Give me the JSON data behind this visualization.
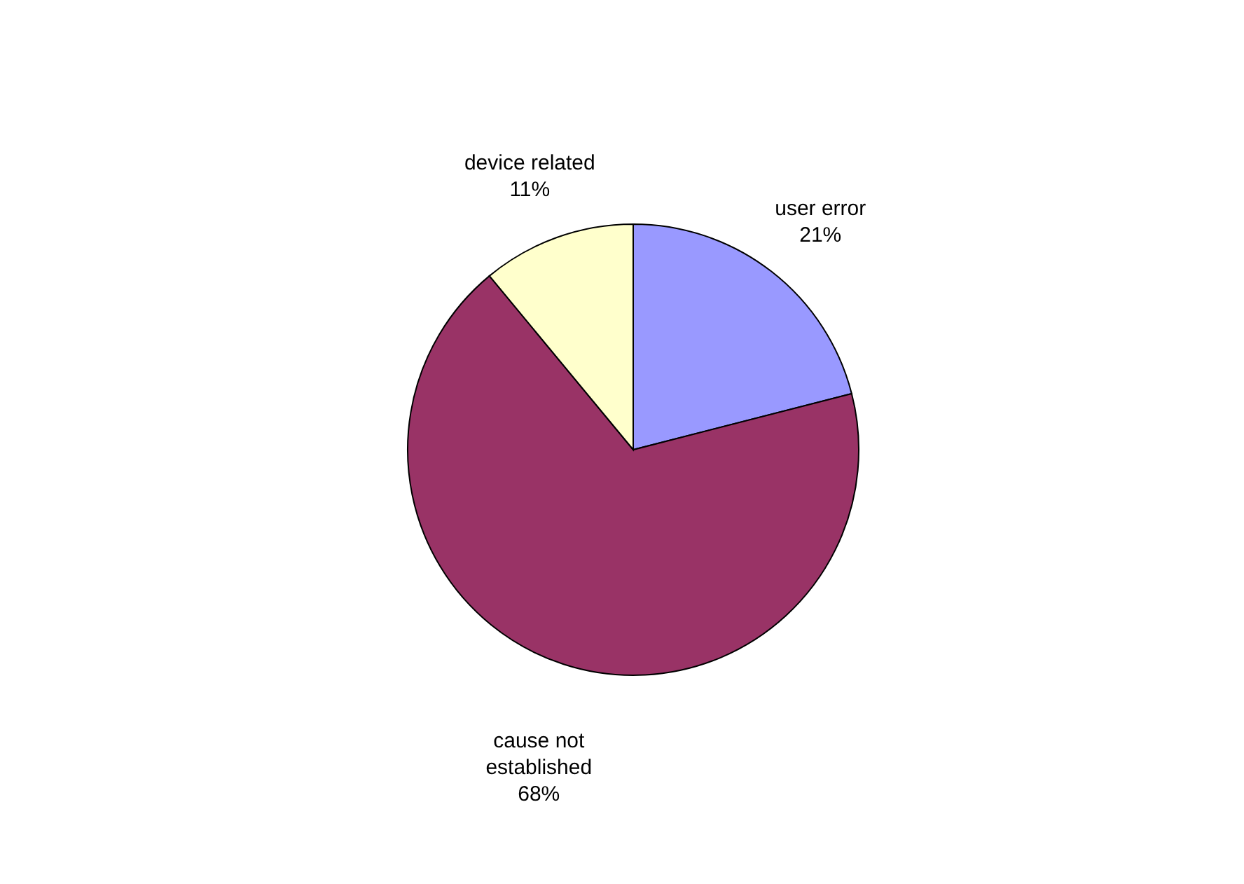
{
  "chart_data": {
    "type": "pie",
    "categories": [
      "user error",
      "cause not established",
      "device related"
    ],
    "values": [
      21,
      68,
      11
    ],
    "colors": [
      "#9999ff",
      "#993366",
      "#ffffcc"
    ],
    "value_labels": [
      "21%",
      "68%",
      "11%"
    ]
  }
}
